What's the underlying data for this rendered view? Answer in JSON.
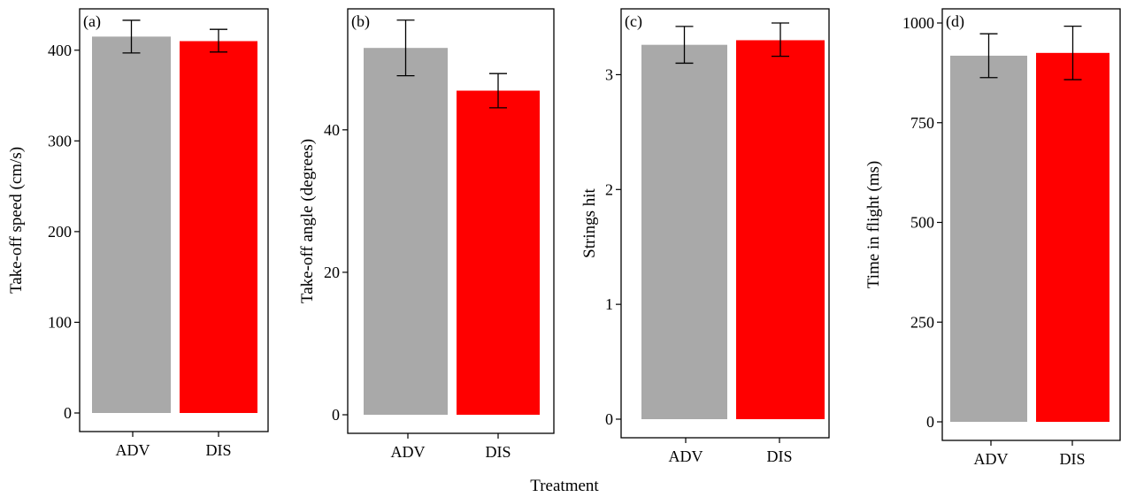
{
  "figure": {
    "xlabel": "Treatment"
  },
  "colors": {
    "ADV": "#a9a9a9",
    "DIS": "#ff0000",
    "frame": "#000000",
    "error_bar": "#000000"
  },
  "chart_data": [
    {
      "type": "bar",
      "panel_label": "(a)",
      "ylabel": "Take-off speed (cm/s)",
      "categories": [
        "ADV",
        "DIS"
      ],
      "values": [
        415,
        410
      ],
      "error_low": [
        397,
        398
      ],
      "error_high": [
        433,
        423
      ],
      "ylim": [
        0,
        430
      ],
      "yticks": [
        0,
        100,
        200,
        300,
        400
      ]
    },
    {
      "type": "bar",
      "panel_label": "(b)",
      "ylabel": "Take-off angle (degrees)",
      "categories": [
        "ADV",
        "DIS"
      ],
      "values": [
        51.5,
        45.5
      ],
      "error_low": [
        47.6,
        43.1
      ],
      "error_high": [
        55.4,
        47.9
      ],
      "ylim": [
        0,
        55
      ],
      "yticks": [
        0,
        20,
        40
      ]
    },
    {
      "type": "bar",
      "panel_label": "(c)",
      "ylabel": "Strings hit",
      "categories": [
        "ADV",
        "DIS"
      ],
      "values": [
        3.26,
        3.3
      ],
      "error_low": [
        3.1,
        3.16
      ],
      "error_high": [
        3.42,
        3.45
      ],
      "ylim": [
        0,
        3.45
      ],
      "yticks": [
        0,
        1,
        2,
        3
      ]
    },
    {
      "type": "bar",
      "panel_label": "(d)",
      "ylabel": "Time in flight (ms)",
      "categories": [
        "ADV",
        "DIS"
      ],
      "values": [
        918,
        925
      ],
      "error_low": [
        863,
        858
      ],
      "error_high": [
        973,
        992
      ],
      "ylim": [
        0,
        1000
      ],
      "yticks": [
        0,
        250,
        500,
        750,
        1000
      ]
    }
  ]
}
